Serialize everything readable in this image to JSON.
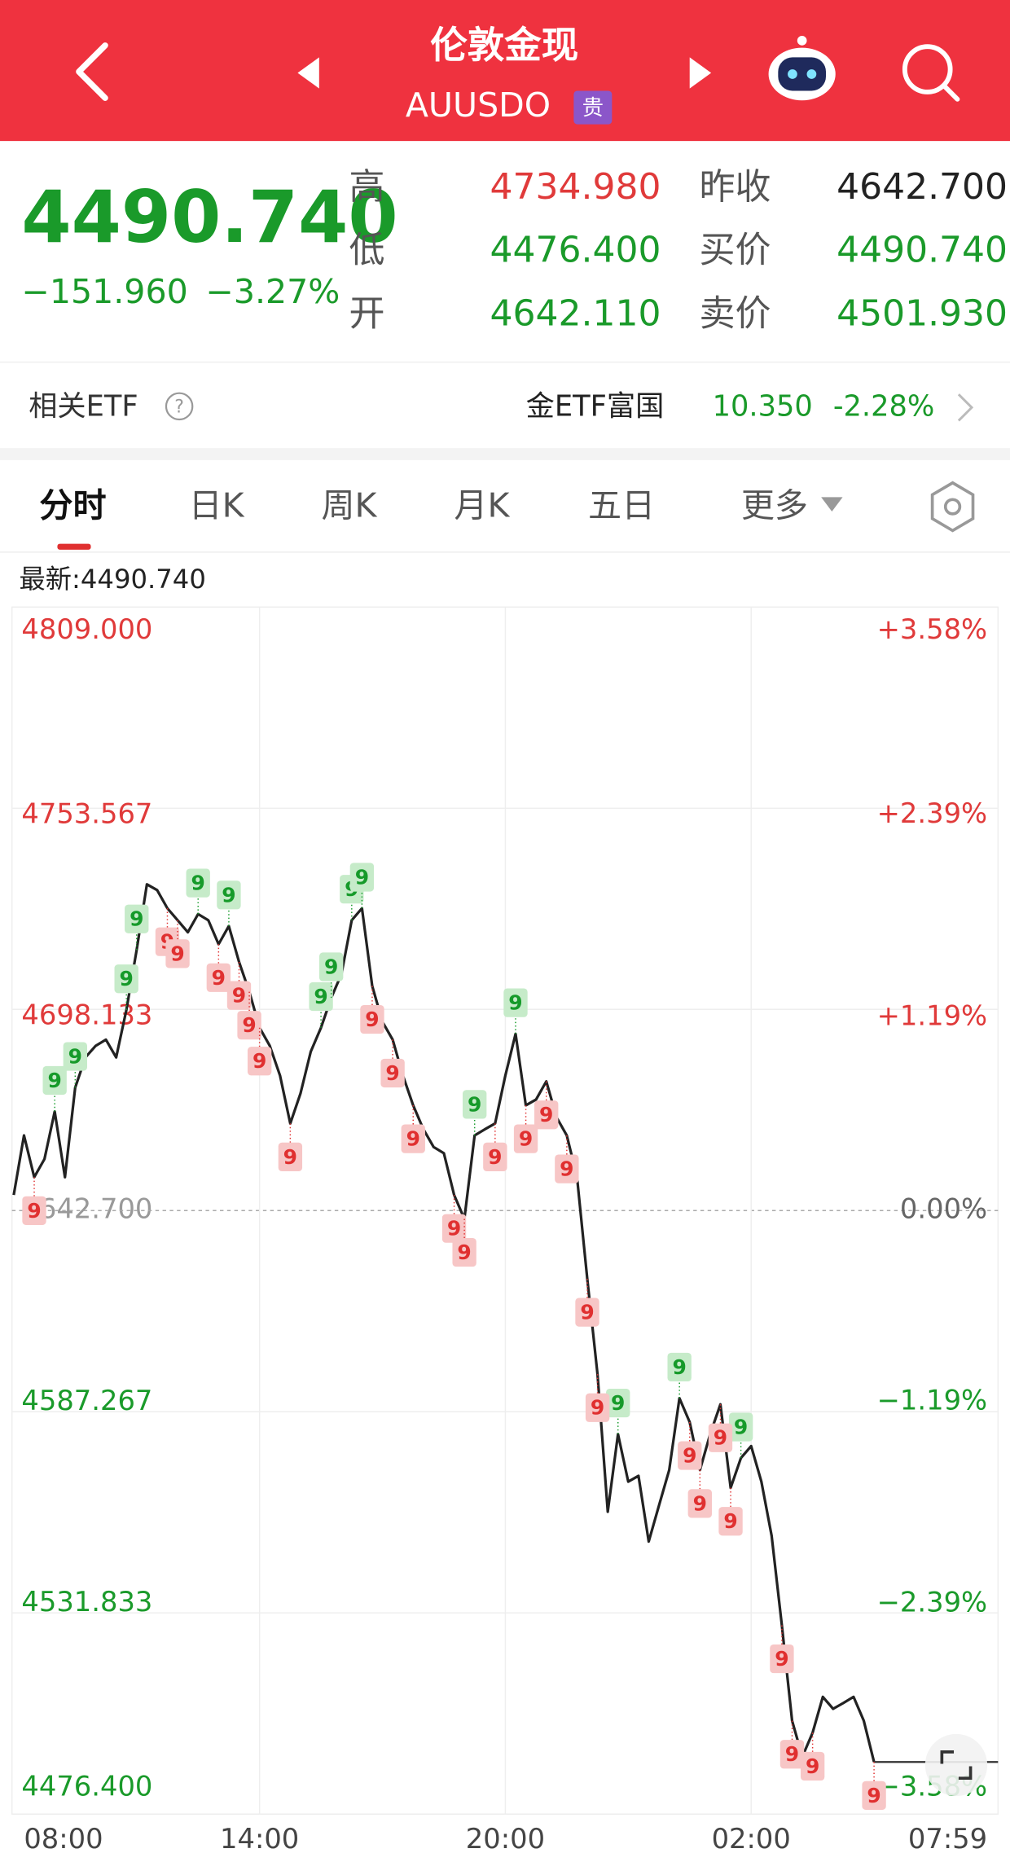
{
  "header": {
    "title": "伦敦金现",
    "code": "AUUSDO",
    "badge": "贵"
  },
  "quote": {
    "price": "4490.740",
    "change": "−151.960",
    "change_pct": "−3.27%",
    "rows": [
      {
        "label": "高",
        "value": "4734.980",
        "label2": "昨收",
        "value2": "4642.700"
      },
      {
        "label": "低",
        "value": "4476.400",
        "label2": "买价",
        "value2": "4490.740"
      },
      {
        "label": "开",
        "value": "4642.110",
        "label2": "卖价",
        "value2": "4501.930"
      }
    ]
  },
  "etf": {
    "label": "相关ETF",
    "help": "?",
    "name": "金ETF富国",
    "price": "10.350",
    "change_pct": "-2.28%"
  },
  "tabs": [
    "分时",
    "日K",
    "周K",
    "月K",
    "五日",
    "更多"
  ],
  "latest": "最新:4490.740",
  "chart_data": {
    "type": "line",
    "color": "#222222",
    "up_color": "#e03a3a",
    "down_color": "#1a9a2a",
    "flat_color": "#999999",
    "xticks": [
      "08:00",
      "14:00",
      "20:00",
      "02:00",
      "07:59"
    ],
    "ylim": [
      4476.4,
      4809
    ],
    "yticks": [
      {
        "value": 4809,
        "label": "4809.000"
      },
      {
        "value": 4753.567,
        "label": "4753.567"
      },
      {
        "value": 4698.133,
        "label": "4698.133"
      },
      {
        "value": 4642.7,
        "label": "4642.700"
      },
      {
        "value": 4587.267,
        "label": "4587.267"
      },
      {
        "value": 4531.833,
        "label": "4531.833"
      },
      {
        "value": 4476.4,
        "label": "4476.400"
      }
    ],
    "y2lim": [
      -3.58,
      3.58
    ],
    "y2ticks": [
      {
        "value": 3.58,
        "label": "+3.58%"
      },
      {
        "value": 2.39,
        "label": "+2.39%"
      },
      {
        "value": 1.19,
        "label": "+1.19%"
      },
      {
        "value": 0,
        "label": "0.00%"
      },
      {
        "value": -1.19,
        "label": "−1.19%"
      },
      {
        "value": -2.39,
        "label": "−2.39%"
      },
      {
        "value": -3.58,
        "label": "−3.58%"
      }
    ],
    "reference_line": 4642.7,
    "x": [
      "08:00",
      "08:15",
      "08:30",
      "08:45",
      "09:00",
      "09:15",
      "09:30",
      "09:45",
      "10:00",
      "10:15",
      "10:30",
      "10:45",
      "11:00",
      "11:15",
      "11:30",
      "11:45",
      "12:00",
      "12:15",
      "12:30",
      "12:45",
      "13:00",
      "13:15",
      "13:30",
      "13:45",
      "14:00",
      "14:15",
      "14:30",
      "14:45",
      "15:00",
      "15:15",
      "15:30",
      "15:45",
      "16:00",
      "16:15",
      "16:30",
      "16:45",
      "17:00",
      "17:15",
      "17:30",
      "17:45",
      "18:00",
      "18:15",
      "18:30",
      "18:45",
      "19:00",
      "19:15",
      "19:30",
      "19:45",
      "20:00",
      "20:15",
      "20:30",
      "20:45",
      "21:00",
      "21:15",
      "21:30",
      "21:45",
      "22:00",
      "22:15",
      "22:30",
      "22:45",
      "23:00",
      "23:15",
      "23:30",
      "23:45",
      "00:00",
      "00:15",
      "00:30",
      "00:45",
      "01:00",
      "01:15",
      "01:30",
      "01:45",
      "02:00",
      "02:15",
      "02:30",
      "02:45",
      "03:00",
      "03:15",
      "03:30",
      "03:45",
      "04:00",
      "04:15",
      "04:30",
      "04:45",
      "05:00"
    ],
    "series": [
      {
        "name": "AUUSDO",
        "values": [
          4647.0,
          4663.4,
          4651.9,
          4656.9,
          4670.0,
          4651.9,
          4676.6,
          4684.9,
          4688.1,
          4689.8,
          4684.9,
          4698.0,
          4714.5,
          4732.6,
          4731.0,
          4726.0,
          4722.7,
          4719.4,
          4724.4,
          4722.7,
          4716.1,
          4721.1,
          4711.2,
          4703.0,
          4693.1,
          4688.1,
          4679.9,
          4666.7,
          4675.0,
          4686.5,
          4693.1,
          4701.3,
          4707.9,
          4722.7,
          4726.0,
          4704.6,
          4694.7,
          4689.8,
          4679.9,
          4671.7,
          4665.1,
          4660.2,
          4658.5,
          4647.0,
          4640.4,
          4663.4,
          4665.1,
          4666.7,
          4679.9,
          4691.4,
          4671.7,
          4673.3,
          4678.3,
          4668.4,
          4663.4,
          4651.9,
          4623.9,
          4597.6,
          4559.7,
          4581.1,
          4568.0,
          4569.6,
          4551.5,
          4561.4,
          4571.2,
          4591.0,
          4584.4,
          4571.2,
          4581.1,
          4589.3,
          4566.3,
          4574.5,
          4577.8,
          4568.0,
          4553.1,
          4528.4,
          4502.1,
          4492.2,
          4498.8,
          4508.7,
          4505.4,
          4507.0,
          4508.7,
          4502.1,
          4490.74
        ]
      }
    ],
    "marker_styles": {
      "above": {
        "fill": "#c6ebc9",
        "text": "#169a2a"
      },
      "below": {
        "fill": "#f7c6c6",
        "text": "#e03030"
      }
    },
    "markers": [
      {
        "x": "09:00",
        "label": "9",
        "side": "above"
      },
      {
        "x": "09:30",
        "label": "9",
        "side": "above"
      },
      {
        "x": "10:45",
        "label": "9",
        "side": "above"
      },
      {
        "x": "11:00",
        "label": "9",
        "side": "above"
      },
      {
        "x": "12:30",
        "label": "9",
        "side": "above"
      },
      {
        "x": "13:15",
        "label": "9",
        "side": "above"
      },
      {
        "x": "15:30",
        "label": "9",
        "side": "above"
      },
      {
        "x": "15:45",
        "label": "9",
        "side": "above"
      },
      {
        "x": "16:15",
        "label": "9",
        "side": "above"
      },
      {
        "x": "16:30",
        "label": "9",
        "side": "above"
      },
      {
        "x": "19:15",
        "label": "9",
        "side": "above"
      },
      {
        "x": "20:15",
        "label": "9",
        "side": "above"
      },
      {
        "x": "22:45",
        "label": "9",
        "side": "above"
      },
      {
        "x": "00:15",
        "label": "9",
        "side": "above"
      },
      {
        "x": "01:45",
        "label": "9",
        "side": "above"
      },
      {
        "x": "08:30",
        "label": "9",
        "side": "below"
      },
      {
        "x": "11:45",
        "label": "9",
        "side": "below"
      },
      {
        "x": "12:00",
        "label": "9",
        "side": "below"
      },
      {
        "x": "13:00",
        "label": "9",
        "side": "below"
      },
      {
        "x": "13:30",
        "label": "9",
        "side": "below"
      },
      {
        "x": "13:45",
        "label": "9",
        "side": "below"
      },
      {
        "x": "14:00",
        "label": "9",
        "side": "below"
      },
      {
        "x": "14:45",
        "label": "9",
        "side": "below"
      },
      {
        "x": "16:45",
        "label": "9",
        "side": "below"
      },
      {
        "x": "17:15",
        "label": "9",
        "side": "below"
      },
      {
        "x": "17:45",
        "label": "9",
        "side": "below"
      },
      {
        "x": "18:45",
        "label": "9",
        "side": "below"
      },
      {
        "x": "19:00",
        "label": "9",
        "side": "below"
      },
      {
        "x": "19:45",
        "label": "9",
        "side": "below"
      },
      {
        "x": "20:30",
        "label": "9",
        "side": "below"
      },
      {
        "x": "21:00",
        "label": "9",
        "side": "below"
      },
      {
        "x": "21:30",
        "label": "9",
        "side": "below"
      },
      {
        "x": "22:00",
        "label": "9",
        "side": "below"
      },
      {
        "x": "22:15",
        "label": "9",
        "side": "below"
      },
      {
        "x": "00:30",
        "label": "9",
        "side": "below"
      },
      {
        "x": "00:45",
        "label": "9",
        "side": "below"
      },
      {
        "x": "01:15",
        "label": "9",
        "side": "below"
      },
      {
        "x": "01:30",
        "label": "9",
        "side": "below"
      },
      {
        "x": "02:45",
        "label": "9",
        "side": "below"
      },
      {
        "x": "03:00",
        "label": "9",
        "side": "below"
      },
      {
        "x": "03:30",
        "label": "9",
        "side": "below"
      },
      {
        "x": "05:00",
        "label": "9",
        "side": "below"
      }
    ]
  }
}
